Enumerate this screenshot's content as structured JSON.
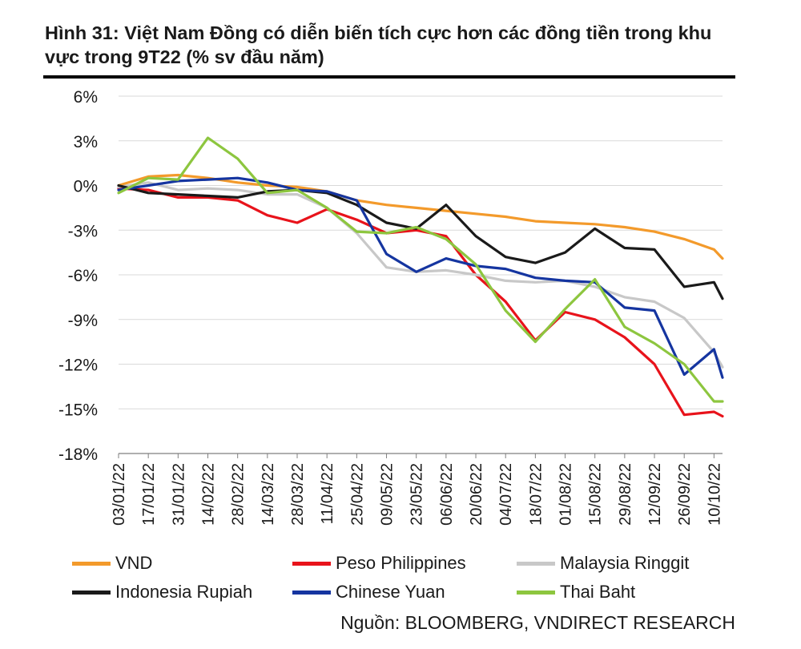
{
  "title": "Hình 31: Việt Nam Đồng có diễn biến tích cực hơn các đồng tiền trong khu vực trong 9T22 (% sv đầu năm)",
  "source": "Nguồn: BLOOMBERG, VNDIRECT RESEARCH",
  "chart_data": {
    "type": "line",
    "title": "Hình 31: Việt Nam Đồng có diễn biến tích cực hơn các đồng tiền trong khu vực trong 9T22 (% sv đầu năm)",
    "ylabel": "",
    "xlabel": "",
    "ylim": [
      -18,
      6
    ],
    "y_ticks": [
      "6%",
      "3%",
      "0%",
      "-3%",
      "-6%",
      "-9%",
      "-12%",
      "-15%",
      "-18%"
    ],
    "y_tick_values": [
      6,
      3,
      0,
      -3,
      -6,
      -9,
      -12,
      -15,
      -18
    ],
    "grid": "horizontal",
    "legend_position": "bottom",
    "x_tick_labels": [
      "03/01/22",
      "17/01/22",
      "31/01/22",
      "14/02/22",
      "28/02/22",
      "14/03/22",
      "28/03/22",
      "11/04/22",
      "25/04/22",
      "09/05/22",
      "23/05/22",
      "06/06/22",
      "20/06/22",
      "04/07/22",
      "18/07/22",
      "01/08/22",
      "15/08/22",
      "29/08/22",
      "12/09/22",
      "26/09/22",
      "10/10/22"
    ],
    "x": [
      "2022-01-03",
      "2022-01-17",
      "2022-01-31",
      "2022-02-14",
      "2022-02-28",
      "2022-03-14",
      "2022-03-28",
      "2022-04-11",
      "2022-04-25",
      "2022-05-09",
      "2022-05-23",
      "2022-06-06",
      "2022-06-20",
      "2022-07-04",
      "2022-07-18",
      "2022-08-01",
      "2022-08-15",
      "2022-08-29",
      "2022-09-12",
      "2022-09-26",
      "2022-10-10",
      "2022-10-14"
    ],
    "series": [
      {
        "name": "VND",
        "color": "#f39a2b",
        "values": [
          0.0,
          0.6,
          0.7,
          0.5,
          0.2,
          0.0,
          -0.1,
          -0.4,
          -1.0,
          -1.3,
          -1.5,
          -1.7,
          -1.9,
          -2.1,
          -2.4,
          -2.5,
          -2.6,
          -2.8,
          -3.1,
          -3.6,
          -4.3,
          -4.9
        ]
      },
      {
        "name": "Peso Philippines",
        "color": "#e8131b",
        "values": [
          -0.2,
          -0.3,
          -0.8,
          -0.8,
          -1.0,
          -2.0,
          -2.5,
          -1.6,
          -2.3,
          -3.2,
          -3.0,
          -3.4,
          -6.0,
          -7.8,
          -10.4,
          -8.5,
          -9.0,
          -10.2,
          -12.0,
          -15.4,
          -15.2,
          -15.5
        ]
      },
      {
        "name": "Malaysia Ringgit",
        "color": "#c8c8c8",
        "values": [
          -0.1,
          0.2,
          -0.3,
          -0.2,
          -0.3,
          -0.6,
          -0.6,
          -1.5,
          -3.2,
          -5.5,
          -5.8,
          -5.7,
          -6.0,
          -6.4,
          -6.5,
          -6.4,
          -6.8,
          -7.5,
          -7.8,
          -8.9,
          -11.2,
          -12.2
        ]
      },
      {
        "name": "Indonesia Rupiah",
        "color": "#1a1a1a",
        "values": [
          0.0,
          -0.5,
          -0.6,
          -0.7,
          -0.8,
          -0.4,
          -0.3,
          -0.5,
          -1.3,
          -2.5,
          -2.9,
          -1.3,
          -3.4,
          -4.8,
          -5.2,
          -4.5,
          -2.9,
          -4.2,
          -4.3,
          -6.8,
          -6.5,
          -7.6
        ]
      },
      {
        "name": "Chinese Yuan",
        "color": "#1535a0",
        "values": [
          -0.3,
          0.0,
          0.3,
          0.4,
          0.5,
          0.2,
          -0.3,
          -0.4,
          -1.0,
          -4.6,
          -5.8,
          -4.9,
          -5.4,
          -5.6,
          -6.2,
          -6.4,
          -6.5,
          -8.2,
          -8.4,
          -12.7,
          -11.0,
          -12.9
        ]
      },
      {
        "name": "Thai Baht",
        "color": "#8dc63f",
        "values": [
          -0.5,
          0.5,
          0.4,
          3.2,
          1.8,
          -0.5,
          -0.3,
          -1.5,
          -3.1,
          -3.2,
          -2.8,
          -3.6,
          -5.3,
          -8.4,
          -10.5,
          -8.3,
          -6.3,
          -9.5,
          -10.6,
          -12.0,
          -14.5,
          -14.5
        ]
      }
    ]
  }
}
